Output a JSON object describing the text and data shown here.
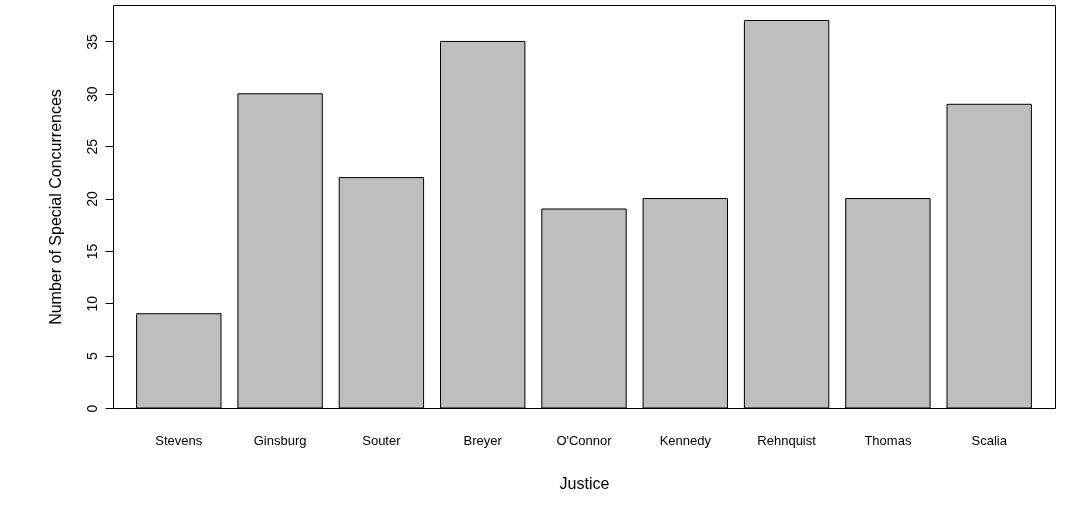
{
  "chart_data": {
    "type": "bar",
    "xlabel": "Justice",
    "ylabel": "Number of Special Concurrences",
    "categories": [
      "Stevens",
      "Ginsburg",
      "Souter",
      "Breyer",
      "O'Connor",
      "Kennedy",
      "Rehnquist",
      "Thomas",
      "Scalia"
    ],
    "values": [
      9,
      30,
      22,
      35,
      19,
      20,
      37,
      20,
      29
    ],
    "color": "#bebebe",
    "ylim": [
      0,
      38.48
    ],
    "yticks": [
      0,
      5,
      10,
      15,
      20,
      25,
      30,
      35
    ],
    "grid": false
  }
}
